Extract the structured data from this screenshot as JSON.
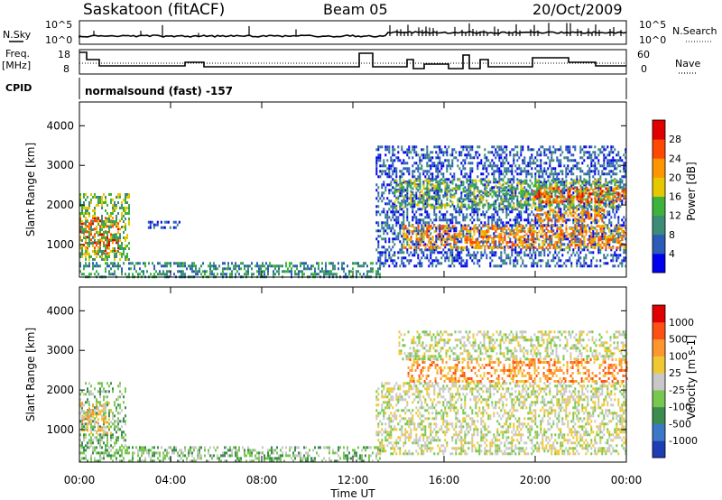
{
  "header": {
    "site": "Saskatoon (fitACF)",
    "beam": "Beam 05",
    "date": "20/Oct/2009"
  },
  "top_panels": {
    "nsky_label": "N.Sky",
    "nsky_ticks": [
      "10^5",
      "10^0"
    ],
    "nsearch_label": "N.Search",
    "nsearch_ticks": [
      "10^5",
      "10^0"
    ],
    "freq_label_line1": "Freq.",
    "freq_label_line2": "[MHz]",
    "freq_ticks": [
      "18",
      "8"
    ],
    "nave_label": "Nave",
    "nave_ticks": [
      "60",
      "0"
    ],
    "cpid_label": "CPID",
    "cpid_text": "normalsound (fast) -157"
  },
  "chart_data": [
    {
      "type": "heatmap",
      "name": "power",
      "ylabel": "Slant Range [km]",
      "xlabel": "Time UT",
      "x_ticks": [
        "00:00",
        "04:00",
        "08:00",
        "12:00",
        "16:00",
        "20:00",
        "00:00"
      ],
      "x_range_hours": [
        0,
        24
      ],
      "y_ticks": [
        "1000",
        "2000",
        "3000",
        "4000"
      ],
      "y_range_km": [
        180,
        4600
      ],
      "colorbar_label": "Power [dB]",
      "colorbar_ticks": [
        "28",
        "24",
        "20",
        "16",
        "12",
        "8",
        "4"
      ],
      "colorbar_colors": [
        "#0000ee",
        "#2a5cb8",
        "#3c8c78",
        "#3cb43c",
        "#e6c800",
        "#ff9600",
        "#ff4800",
        "#e00000"
      ],
      "regions": [
        {
          "t": [
            0.0,
            1.8
          ],
          "r": [
            800,
            1700
          ],
          "level": 6
        },
        {
          "t": [
            0.0,
            2.2
          ],
          "r": [
            600,
            2300
          ],
          "level": 3
        },
        {
          "t": [
            3.0,
            4.4
          ],
          "r": [
            1400,
            1600
          ],
          "level": 1
        },
        {
          "t": [
            0.0,
            13.2
          ],
          "r": [
            180,
            560
          ],
          "level": 2
        },
        {
          "t": [
            13.0,
            24.0
          ],
          "r": [
            450,
            3500
          ],
          "level": 1
        },
        {
          "t": [
            14.2,
            24.0
          ],
          "r": [
            900,
            1500
          ],
          "level": 5
        },
        {
          "t": [
            13.8,
            24.0
          ],
          "r": [
            1950,
            2650
          ],
          "level": 3
        },
        {
          "t": [
            19.9,
            24.0
          ],
          "r": [
            2100,
            2450
          ],
          "level": 6
        },
        {
          "t": [
            19.9,
            23.0
          ],
          "r": [
            1600,
            1900
          ],
          "level": 5
        }
      ]
    },
    {
      "type": "heatmap",
      "name": "velocity",
      "ylabel": "Slant Range [km]",
      "xlabel": "Time UT",
      "x_ticks": [
        "00:00",
        "04:00",
        "08:00",
        "12:00",
        "16:00",
        "20:00",
        "00:00"
      ],
      "x_range_hours": [
        0,
        24
      ],
      "y_ticks": [
        "1000",
        "2000",
        "3000",
        "4000"
      ],
      "y_range_km": [
        180,
        4600
      ],
      "colorbar_label": "Velocity [m s-1]",
      "colorbar_ticks": [
        "1000",
        "500",
        "100",
        "25",
        "-25",
        "-100",
        "-500",
        "-1000"
      ],
      "colorbar_colors": [
        "#1e3cb4",
        "#3c78c8",
        "#3c8c50",
        "#78c850",
        "#c8c8c8",
        "#f0c832",
        "#ff9630",
        "#ff5014",
        "#e00000"
      ],
      "regions": [
        {
          "t": [
            0.0,
            2.0
          ],
          "r": [
            600,
            2200
          ],
          "level": 3
        },
        {
          "t": [
            0.0,
            1.4
          ],
          "r": [
            900,
            1700
          ],
          "level": 5
        },
        {
          "t": [
            0.0,
            13.2
          ],
          "r": [
            180,
            580
          ],
          "level": 3
        },
        {
          "t": [
            13.0,
            24.0
          ],
          "r": [
            400,
            2200
          ],
          "level": 4
        },
        {
          "t": [
            14.4,
            24.0
          ],
          "r": [
            2200,
            2800
          ],
          "level": 6
        },
        {
          "t": [
            14.0,
            24.0
          ],
          "r": [
            2800,
            3500
          ],
          "level": 4
        }
      ]
    }
  ]
}
